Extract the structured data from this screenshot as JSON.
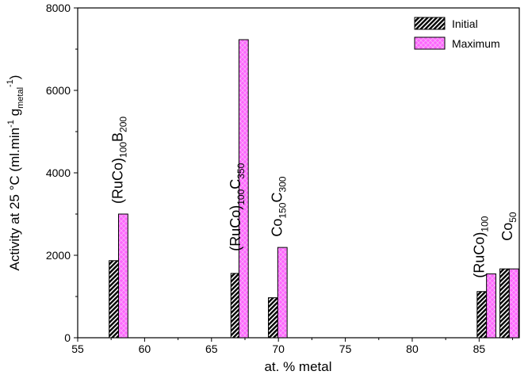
{
  "chart_data": {
    "type": "bar",
    "xlabel": "at. % metal",
    "ylabel": "Activity at 25 °C (ml.min",
    "ylabel_sup1": "-1",
    "ylabel_mid": " g",
    "ylabel_sub": "metal",
    "ylabel_sup2": "-1",
    "ylabel_end": ")",
    "xlim": [
      55,
      88
    ],
    "ylim": [
      0,
      8000
    ],
    "x_ticks": [
      55,
      60,
      65,
      70,
      75,
      80,
      85
    ],
    "y_ticks": [
      0,
      2000,
      4000,
      6000,
      8000
    ],
    "grid": false,
    "legend_position": "top-right",
    "series": [
      {
        "name": "Initial",
        "color": "#000000",
        "pattern": "hatched",
        "points": [
          {
            "x": 57.7,
            "y": 1870
          },
          {
            "x": 66.8,
            "y": 1560
          },
          {
            "x": 69.6,
            "y": 970
          },
          {
            "x": 85.2,
            "y": 1120
          },
          {
            "x": 86.9,
            "y": 1670
          }
        ]
      },
      {
        "name": "Maximum",
        "color": "#ff66ff",
        "pattern": "crosshatched",
        "points": [
          {
            "x": 58.4,
            "y": 3000
          },
          {
            "x": 67.4,
            "y": 7230
          },
          {
            "x": 70.3,
            "y": 2190
          },
          {
            "x": 85.9,
            "y": 1550
          },
          {
            "x": 87.6,
            "y": 1670
          }
        ]
      }
    ],
    "annotations": [
      {
        "parts": [
          {
            "t": "(RuCo)"
          },
          {
            "t": "100",
            "s": "sub"
          },
          {
            "t": "B"
          },
          {
            "t": "200",
            "s": "sub"
          }
        ],
        "x": 58.0,
        "y": 3250
      },
      {
        "parts": [
          {
            "t": "(RuCo)"
          },
          {
            "t": "100",
            "s": "sub"
          },
          {
            "t": "C"
          },
          {
            "t": "350",
            "s": "sub"
          }
        ],
        "x": 66.8,
        "y": 2100
      },
      {
        "parts": [
          {
            "t": "Co"
          },
          {
            "t": "150",
            "s": "sub"
          },
          {
            "t": "C"
          },
          {
            "t": "300",
            "s": "sub"
          }
        ],
        "x": 69.9,
        "y": 2450
      },
      {
        "parts": [
          {
            "t": "(RuCo)"
          },
          {
            "t": "100",
            "s": "sub"
          }
        ],
        "x": 85.0,
        "y": 1450
      },
      {
        "parts": [
          {
            "t": "Co"
          },
          {
            "t": "50",
            "s": "sub"
          }
        ],
        "x": 87.1,
        "y": 2350
      }
    ]
  }
}
